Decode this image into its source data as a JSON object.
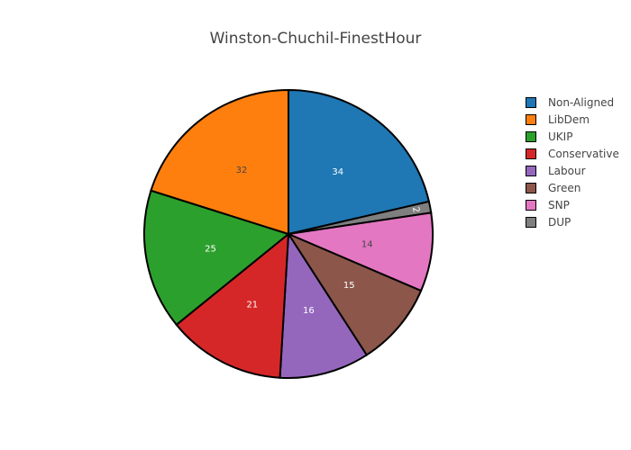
{
  "chart_data": {
    "type": "pie",
    "title": "Winston-Chuchil-FinestHour",
    "legend_position": "right",
    "slices": [
      {
        "label": "Non-Aligned",
        "value": 34,
        "color": "#1f77b4",
        "text_color": "#ffffff"
      },
      {
        "label": "DUP",
        "value": 2,
        "color": "#7f7f7f",
        "text_color": "#ffffff"
      },
      {
        "label": "SNP",
        "value": 14,
        "color": "#e377c2",
        "text_color": "#444444"
      },
      {
        "label": "Green",
        "value": 15,
        "color": "#8c564b",
        "text_color": "#ffffff"
      },
      {
        "label": "Labour",
        "value": 16,
        "color": "#9467bd",
        "text_color": "#ffffff"
      },
      {
        "label": "Conservative",
        "value": 21,
        "color": "#d62728",
        "text_color": "#ffffff"
      },
      {
        "label": "UKIP",
        "value": 25,
        "color": "#2ca02c",
        "text_color": "#ffffff"
      },
      {
        "label": "LibDem",
        "value": 32,
        "color": "#ff7f0e",
        "text_color": "#444444"
      }
    ],
    "legend_order": [
      "Non-Aligned",
      "LibDem",
      "UKIP",
      "Conservative",
      "Labour",
      "Green",
      "SNP",
      "DUP"
    ]
  }
}
